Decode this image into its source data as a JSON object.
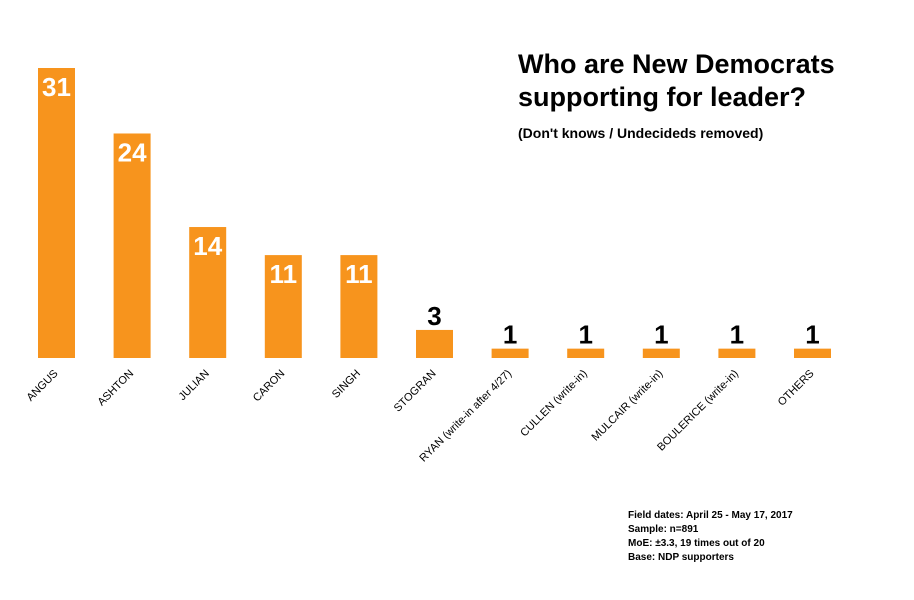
{
  "chart_data": {
    "type": "bar",
    "title": "Who are New Democrats supporting for leader?",
    "subtitle": "(Don't knows / Undecideds removed)",
    "categories": [
      "ANGUS",
      "ASHTON",
      "JULIAN",
      "CARON",
      "SINGH",
      "STOGRAN",
      "RYAN (write-in after 4/27)",
      "CULLEN (write-in)",
      "MULCAIR (write-in)",
      "BOULERICE (write-in)",
      "OTHERS"
    ],
    "values": [
      31,
      24,
      14,
      11,
      11,
      3,
      1,
      1,
      1,
      1,
      1
    ],
    "bar_color": "#F7941D",
    "inside_label_color": "#ffffff",
    "outside_label_color": "#000000",
    "xlabel": "",
    "ylabel": "",
    "ylim": [
      0,
      31
    ],
    "grid": false,
    "legend": "none"
  },
  "notes": {
    "field_dates": "Field dates: April 25 - May 17, 2017",
    "sample": "Sample: n=891",
    "moe": "MoE: ±3.3, 19 times out of 20",
    "base": "Base: NDP supporters"
  }
}
